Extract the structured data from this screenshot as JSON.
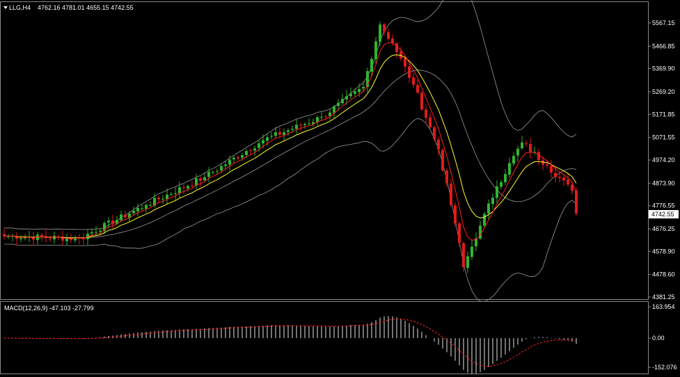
{
  "header": {
    "symbol_tf": "LLG,H4",
    "ohlc": "4762.16 4781.01 4655.15 4742.55",
    "macd_label": "MACD(12,26,9) -47.103 -27.799"
  },
  "colors": {
    "background": "#000000",
    "bull": "#2fb52f",
    "bear": "#e11b1b",
    "ema_fast": "#ff2020",
    "ema_slow": "#ffff2a",
    "bands": "#9a9a9a",
    "text": "#ffffff",
    "grid_border": "#8a8a8a"
  },
  "chart_data": [
    {
      "type": "candlestick",
      "symbol": "LLG",
      "timeframe": "H4",
      "current_price": "4742.55",
      "yticks": [
        "5567.15",
        "5466.85",
        "5369.90",
        "5269.20",
        "5171.85",
        "5071.55",
        "4974.20",
        "4873.90",
        "4776.55",
        "4676.25",
        "4578.90",
        "4478.60",
        "4381.25"
      ],
      "ylim": [
        4381.25,
        5567.15
      ],
      "indicators": [
        "EMA (fast, red)",
        "EMA (slow, yellow)",
        "Bollinger-type bands (gray)"
      ],
      "close_keypoints": [
        {
          "bar": 0,
          "close": 4645
        },
        {
          "bar": 18,
          "close": 4635
        },
        {
          "bar": 34,
          "close": 4780
        },
        {
          "bar": 48,
          "close": 4900
        },
        {
          "bar": 62,
          "close": 5060
        },
        {
          "bar": 76,
          "close": 5160
        },
        {
          "bar": 86,
          "close": 5290
        },
        {
          "bar": 90,
          "close": 5560
        },
        {
          "bar": 93,
          "close": 5480
        },
        {
          "bar": 98,
          "close": 5300
        },
        {
          "bar": 104,
          "close": 5020
        },
        {
          "bar": 108,
          "close": 4700
        },
        {
          "bar": 110,
          "close": 4510
        },
        {
          "bar": 114,
          "close": 4690
        },
        {
          "bar": 118,
          "close": 4860
        },
        {
          "bar": 124,
          "close": 5050
        },
        {
          "bar": 130,
          "close": 4950
        },
        {
          "bar": 136,
          "close": 4840
        },
        {
          "bar": 137,
          "close": 4742.55
        }
      ]
    },
    {
      "type": "bar",
      "name": "MACD(12,26,9)",
      "main_value": "-47.103",
      "signal_value": "-27.799",
      "yticks": [
        "163.954",
        "0.00",
        "-152.076"
      ],
      "ylim": [
        -152.076,
        163.954
      ]
    }
  ]
}
